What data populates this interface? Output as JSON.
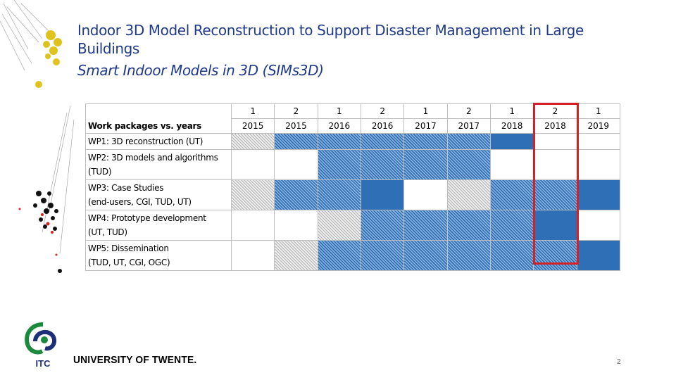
{
  "title": "Indoor 3D Model Reconstruction to Support Disaster Management in Large Buildings",
  "subtitle": "Smart Indoor Models in 3D (SIMs3D)",
  "table": {
    "header_label": "Work packages vs. years",
    "columns": [
      {
        "n": "1",
        "year": "2015"
      },
      {
        "n": "2",
        "year": "2015"
      },
      {
        "n": "1",
        "year": "2016"
      },
      {
        "n": "2",
        "year": "2016"
      },
      {
        "n": "1",
        "year": "2017"
      },
      {
        "n": "2",
        "year": "2017"
      },
      {
        "n": "1",
        "year": "2018"
      },
      {
        "n": "2",
        "year": "2018"
      },
      {
        "n": "1",
        "year": "2019"
      }
    ],
    "rows": [
      {
        "line1": "WP1: 3D reconstruction (UT)",
        "line2": "",
        "cells": [
          "grey",
          "hatch",
          "hatch",
          "hatch",
          "hatch",
          "hatch",
          "solid",
          "empty",
          "empty"
        ]
      },
      {
        "line1": "WP2: 3D models and algorithms",
        "line2": "(TUD)",
        "cells": [
          "empty",
          "empty",
          "hatch",
          "hatch",
          "hatch",
          "hatch",
          "empty",
          "empty",
          "empty"
        ]
      },
      {
        "line1": "WP3: Case Studies",
        "line2": "(end-users, CGI, TUD, UT)",
        "cells": [
          "grey",
          "hatch",
          "hatch",
          "solid",
          "empty",
          "grey",
          "hatch",
          "hatch",
          "solid"
        ]
      },
      {
        "line1": "WP4: Prototype development",
        "line2": "(UT, TUD)",
        "cells": [
          "empty",
          "empty",
          "grey",
          "hatch",
          "hatch",
          "hatch",
          "hatch",
          "solid",
          "empty"
        ]
      },
      {
        "line1": "WP5: Dissemination",
        "line2": "(TUD, UT, CGI, OGC)",
        "cells": [
          "empty",
          "grey",
          "hatch",
          "hatch",
          "hatch",
          "hatch",
          "hatch",
          "hatch",
          "solid"
        ]
      }
    ]
  },
  "footer": {
    "university": "UNIVERSITY OF TWENTE.",
    "logo_text": "ITC",
    "page_number": "2"
  },
  "colors": {
    "title": "#1f3a8a",
    "highlight": "#d71f26",
    "bar": "#2e6fb5"
  }
}
